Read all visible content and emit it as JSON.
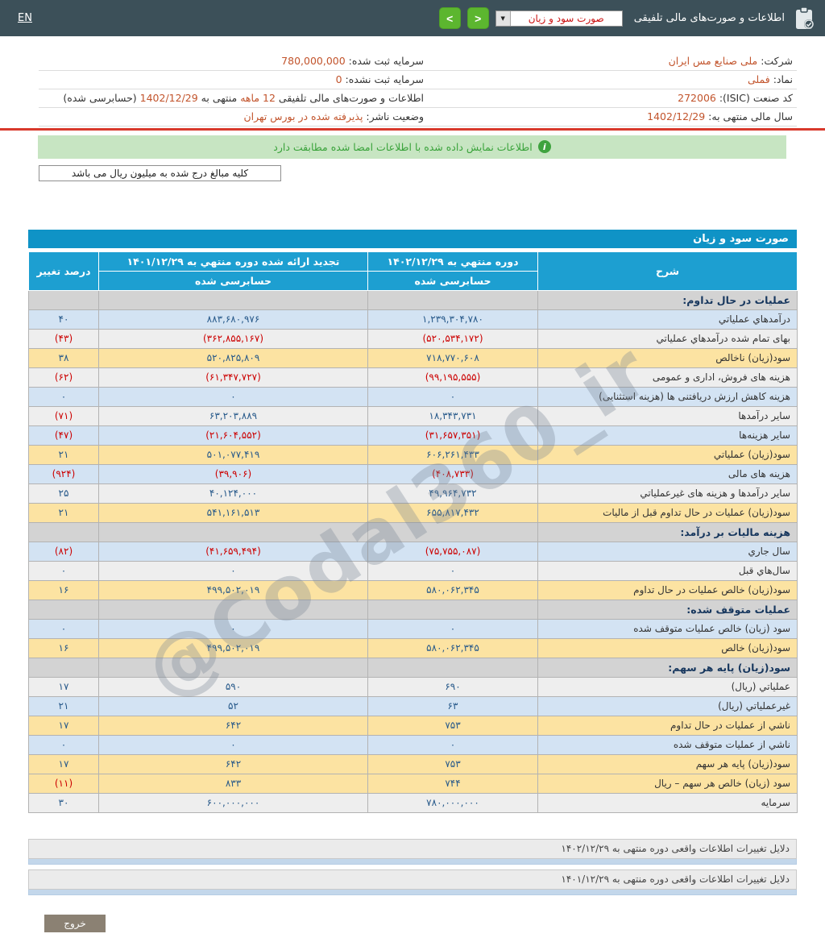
{
  "header": {
    "en_label": "EN",
    "title": "اطلاعات و صورت‌های مالی تلفیقی",
    "statement_select_value": "صورت سود و زیان",
    "icons": {
      "prev": "<",
      "next": ">",
      "dropdown": "▼",
      "info": "i",
      "clipboard": "clipboard-check"
    }
  },
  "company_info": {
    "right_rows": [
      {
        "parts": [
          {
            "t": "شرکت: ",
            "red": false
          },
          {
            "t": "ملی صنایع مس ایران",
            "red": true
          }
        ]
      },
      {
        "parts": [
          {
            "t": "نماد: ",
            "red": false
          },
          {
            "t": "فملی",
            "red": true
          }
        ]
      },
      {
        "parts": [
          {
            "t": "کد صنعت (ISIC): ",
            "red": false
          },
          {
            "t": "272006",
            "red": true
          }
        ]
      },
      {
        "parts": [
          {
            "t": "سال مالی منتهی به: ",
            "red": false
          },
          {
            "t": "1402/12/29",
            "red": true
          }
        ]
      }
    ],
    "left_rows": [
      {
        "parts": [
          {
            "t": "سرمایه ثبت شده: ",
            "red": false
          },
          {
            "t": "780,000,000",
            "red": true
          }
        ]
      },
      {
        "parts": [
          {
            "t": "سرمایه ثبت نشده: ",
            "red": false
          },
          {
            "t": "0",
            "red": true
          }
        ]
      },
      {
        "parts": [
          {
            "t": "اطلاعات و صورت‌های مالی تلفیقی ",
            "red": false
          },
          {
            "t": "12 ماهه",
            "red": true
          },
          {
            "t": " منتهی به ",
            "red": false
          },
          {
            "t": "1402/12/29",
            "red": true
          },
          {
            "t": " (حسابرسی شده)",
            "red": false
          }
        ]
      },
      {
        "parts": [
          {
            "t": "وضعیت ناشر: ",
            "red": false
          },
          {
            "t": "پذیرفته شده در بورس تهران",
            "red": true
          }
        ]
      }
    ]
  },
  "notice": "اطلاعات نمایش داده شده با اطلاعات امضا شده مطابقت دارد",
  "units_note": "کلیه مبالغ درج شده به میلیون ریال می باشد",
  "table": {
    "title": "صورت سود و زیان",
    "columns": {
      "description": "شرح",
      "current_period": "دوره منتهي به ۱۴۰۲/۱۲/۲۹",
      "prior_period": "تجدید ارائه شده دوره منتهي به ۱۴۰۱/۱۲/۲۹",
      "audited": "حسابرسی شده",
      "percent_change": "درصد تغییر"
    },
    "rows": [
      {
        "type": "section",
        "label": "عملیات در حال تداوم:"
      },
      {
        "type": "data",
        "label": "درآمدهاي عملياتي",
        "v1": "۱,۲۳۹,۳۰۴,۷۸۰",
        "v2": "۸۸۳,۶۸۰,۹۷۶",
        "pct": "۴۰",
        "bg": "blue",
        "neg1": false,
        "neg2": false,
        "negp": false
      },
      {
        "type": "data",
        "label": "بهای تمام شده درآمدهاي عملياتي",
        "v1": "(۵۲۰,۵۳۴,۱۷۲)",
        "v2": "(۳۶۲,۸۵۵,۱۶۷)",
        "pct": "(۴۳)",
        "bg": "white",
        "neg1": true,
        "neg2": true,
        "negp": true
      },
      {
        "type": "data",
        "label": "سود(زيان) ناخالص",
        "v1": "۷۱۸,۷۷۰,۶۰۸",
        "v2": "۵۲۰,۸۲۵,۸۰۹",
        "pct": "۳۸",
        "bg": "yellow",
        "neg1": false,
        "neg2": false,
        "negp": false
      },
      {
        "type": "data",
        "label": "هزينه هاى فروش، ادارى و عمومى",
        "v1": "(۹۹,۱۹۵,۵۵۵)",
        "v2": "(۶۱,۳۴۷,۷۲۷)",
        "pct": "(۶۲)",
        "bg": "white",
        "neg1": true,
        "neg2": true,
        "negp": true
      },
      {
        "type": "data",
        "label": "هزينه كاهش ارزش دريافتنى ها (هزينه استثنايى)",
        "v1": "۰",
        "v2": "۰",
        "pct": "۰",
        "bg": "blue",
        "neg1": false,
        "neg2": false,
        "negp": false
      },
      {
        "type": "data",
        "label": "ساير درآمدها",
        "v1": "۱۸,۳۴۳,۷۳۱",
        "v2": "۶۳,۲۰۳,۸۸۹",
        "pct": "(۷۱)",
        "bg": "white",
        "neg1": false,
        "neg2": false,
        "negp": true
      },
      {
        "type": "data",
        "label": "ساير هزينه‌ها",
        "v1": "(۳۱,۶۵۷,۳۵۱)",
        "v2": "(۲۱,۶۰۴,۵۵۲)",
        "pct": "(۴۷)",
        "bg": "blue",
        "neg1": true,
        "neg2": true,
        "negp": true
      },
      {
        "type": "data",
        "label": "سود(زيان) عملياتي",
        "v1": "۶۰۶,۲۶۱,۴۳۳",
        "v2": "۵۰۱,۰۷۷,۴۱۹",
        "pct": "۲۱",
        "bg": "yellow",
        "neg1": false,
        "neg2": false,
        "negp": false
      },
      {
        "type": "data",
        "label": "هزينه هاى مالى",
        "v1": "(۴۰۸,۷۳۳)",
        "v2": "(۳۹,۹۰۶)",
        "pct": "(۹۲۴)",
        "bg": "blue",
        "neg1": true,
        "neg2": true,
        "negp": true
      },
      {
        "type": "data",
        "label": "ساير درآمدها و هزينه هاى غيرعملياتي",
        "v1": "۴۹,۹۶۴,۷۳۲",
        "v2": "۴۰,۱۲۴,۰۰۰",
        "pct": "۲۵",
        "bg": "white",
        "neg1": false,
        "neg2": false,
        "negp": false
      },
      {
        "type": "data",
        "label": "سود(زيان) عمليات در حال تداوم قبل از ماليات",
        "v1": "۶۵۵,۸۱۷,۴۳۲",
        "v2": "۵۴۱,۱۶۱,۵۱۳",
        "pct": "۲۱",
        "bg": "yellow",
        "neg1": false,
        "neg2": false,
        "negp": false
      },
      {
        "type": "section",
        "label": "هزينه ماليات بر درآمد:"
      },
      {
        "type": "data",
        "label": "سال جاري",
        "v1": "(۷۵,۷۵۵,۰۸۷)",
        "v2": "(۴۱,۶۵۹,۴۹۴)",
        "pct": "(۸۲)",
        "bg": "blue",
        "neg1": true,
        "neg2": true,
        "negp": true
      },
      {
        "type": "data",
        "label": "سال‌هاي قبل",
        "v1": "۰",
        "v2": "۰",
        "pct": "۰",
        "bg": "white",
        "neg1": false,
        "neg2": false,
        "negp": false
      },
      {
        "type": "data",
        "label": "سود(زيان) خالص عمليات در حال تداوم",
        "v1": "۵۸۰,۰۶۲,۳۴۵",
        "v2": "۴۹۹,۵۰۲,۰۱۹",
        "pct": "۱۶",
        "bg": "yellow",
        "neg1": false,
        "neg2": false,
        "negp": false
      },
      {
        "type": "section",
        "label": "عمليات متوقف شده:"
      },
      {
        "type": "data",
        "label": "سود (زيان) خالص عمليات متوقف شده",
        "v1": "۰",
        "v2": "۰",
        "pct": "۰",
        "bg": "blue",
        "neg1": false,
        "neg2": false,
        "negp": false
      },
      {
        "type": "data",
        "label": "سود(زيان) خالص",
        "v1": "۵۸۰,۰۶۲,۳۴۵",
        "v2": "۴۹۹,۵۰۲,۰۱۹",
        "pct": "۱۶",
        "bg": "yellow",
        "neg1": false,
        "neg2": false,
        "negp": false
      },
      {
        "type": "section",
        "label": "سود(زيان) پايه هر سهم:"
      },
      {
        "type": "data",
        "label": "عملياتي (ريال)",
        "v1": "۶۹۰",
        "v2": "۵۹۰",
        "pct": "۱۷",
        "bg": "white",
        "neg1": false,
        "neg2": false,
        "negp": false
      },
      {
        "type": "data",
        "label": "غيرعملياتي (ريال)",
        "v1": "۶۳",
        "v2": "۵۲",
        "pct": "۲۱",
        "bg": "blue",
        "neg1": false,
        "neg2": false,
        "negp": false
      },
      {
        "type": "data",
        "label": "ناشي از عمليات در حال تداوم",
        "v1": "۷۵۳",
        "v2": "۶۴۲",
        "pct": "۱۷",
        "bg": "yellow",
        "neg1": false,
        "neg2": false,
        "negp": false
      },
      {
        "type": "data",
        "label": "ناشي از عمليات متوقف شده",
        "v1": "۰",
        "v2": "۰",
        "pct": "۰",
        "bg": "blue",
        "neg1": false,
        "neg2": false,
        "negp": false
      },
      {
        "type": "data",
        "label": "سود(زيان) پايه هر سهم",
        "v1": "۷۵۳",
        "v2": "۶۴۲",
        "pct": "۱۷",
        "bg": "yellow",
        "neg1": false,
        "neg2": false,
        "negp": false
      },
      {
        "type": "data",
        "label": "سود (زيان) خالص هر سهم – ريال",
        "v1": "۷۴۴",
        "v2": "۸۳۳",
        "pct": "(۱۱)",
        "bg": "yellow",
        "neg1": false,
        "neg2": false,
        "negp": true
      },
      {
        "type": "data",
        "label": "سرمايه",
        "v1": "۷۸۰,۰۰۰,۰۰۰",
        "v2": "۶۰۰,۰۰۰,۰۰۰",
        "pct": "۳۰",
        "bg": "white",
        "neg1": false,
        "neg2": false,
        "negp": false
      }
    ]
  },
  "watermark": "@Codal360_ir",
  "reasons": [
    {
      "label": "دلایل تغییرات اطلاعات واقعی دوره منتهی به ۱۴۰۲/۱۲/۲۹"
    },
    {
      "label": "دلایل تغییرات اطلاعات واقعی دوره منتهی به ۱۴۰۱/۱۲/۲۹"
    }
  ],
  "exit_label": "خروج",
  "colors": {
    "header_bg": "#3c5059",
    "title_blue": "#0f93c6",
    "header_blue": "#1d9fd1",
    "row_blue": "#d3e3f3",
    "row_yellow": "#fce3a2",
    "row_gray": "#eeeeee",
    "section_gray": "#d3d3d3",
    "negative_red": "#cc0000",
    "value_orange": "#c2542c",
    "banner_green": "#c7e5c2",
    "button_green": "#5cb62f",
    "divider_red": "#d8392c"
  }
}
